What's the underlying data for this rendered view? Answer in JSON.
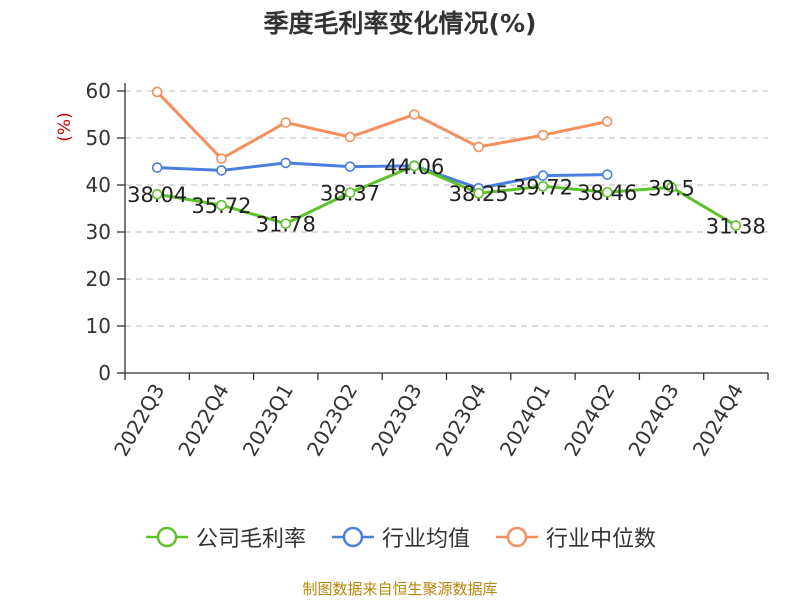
{
  "chart_data": {
    "type": "line",
    "title": "季度毛利率变化情况(%)",
    "ylabel": "(%)",
    "xlabel": "",
    "ylim": [
      0,
      60
    ],
    "yticks": [
      0,
      10,
      20,
      30,
      40,
      50,
      60
    ],
    "grid": true,
    "legend_position": "bottom",
    "categories": [
      "2022Q3",
      "2022Q4",
      "2023Q1",
      "2023Q2",
      "2023Q3",
      "2023Q4",
      "2024Q1",
      "2024Q2",
      "2024Q3",
      "2024Q4"
    ],
    "series": [
      {
        "name": "公司毛利率",
        "color": "#5ec22a",
        "values": [
          38.04,
          35.72,
          31.78,
          38.37,
          44.06,
          38.25,
          39.72,
          38.46,
          39.5,
          31.38
        ],
        "labels": [
          "38.04",
          "35.72",
          "31.78",
          "38.37",
          "44.06",
          "38.25",
          "39.72",
          "38.46",
          "39.5",
          "31.38"
        ]
      },
      {
        "name": "行业均值",
        "color": "#4a7fde",
        "values": [
          43.7,
          43.1,
          44.7,
          43.9,
          44.1,
          39.3,
          42.0,
          42.2,
          null,
          null
        ]
      },
      {
        "name": "行业中位数",
        "color": "#f58e5b",
        "values": [
          59.8,
          45.6,
          53.3,
          50.2,
          55.0,
          48.1,
          50.6,
          53.5,
          null,
          null
        ]
      }
    ],
    "source": "制图数据来自恒生聚源数据库"
  }
}
